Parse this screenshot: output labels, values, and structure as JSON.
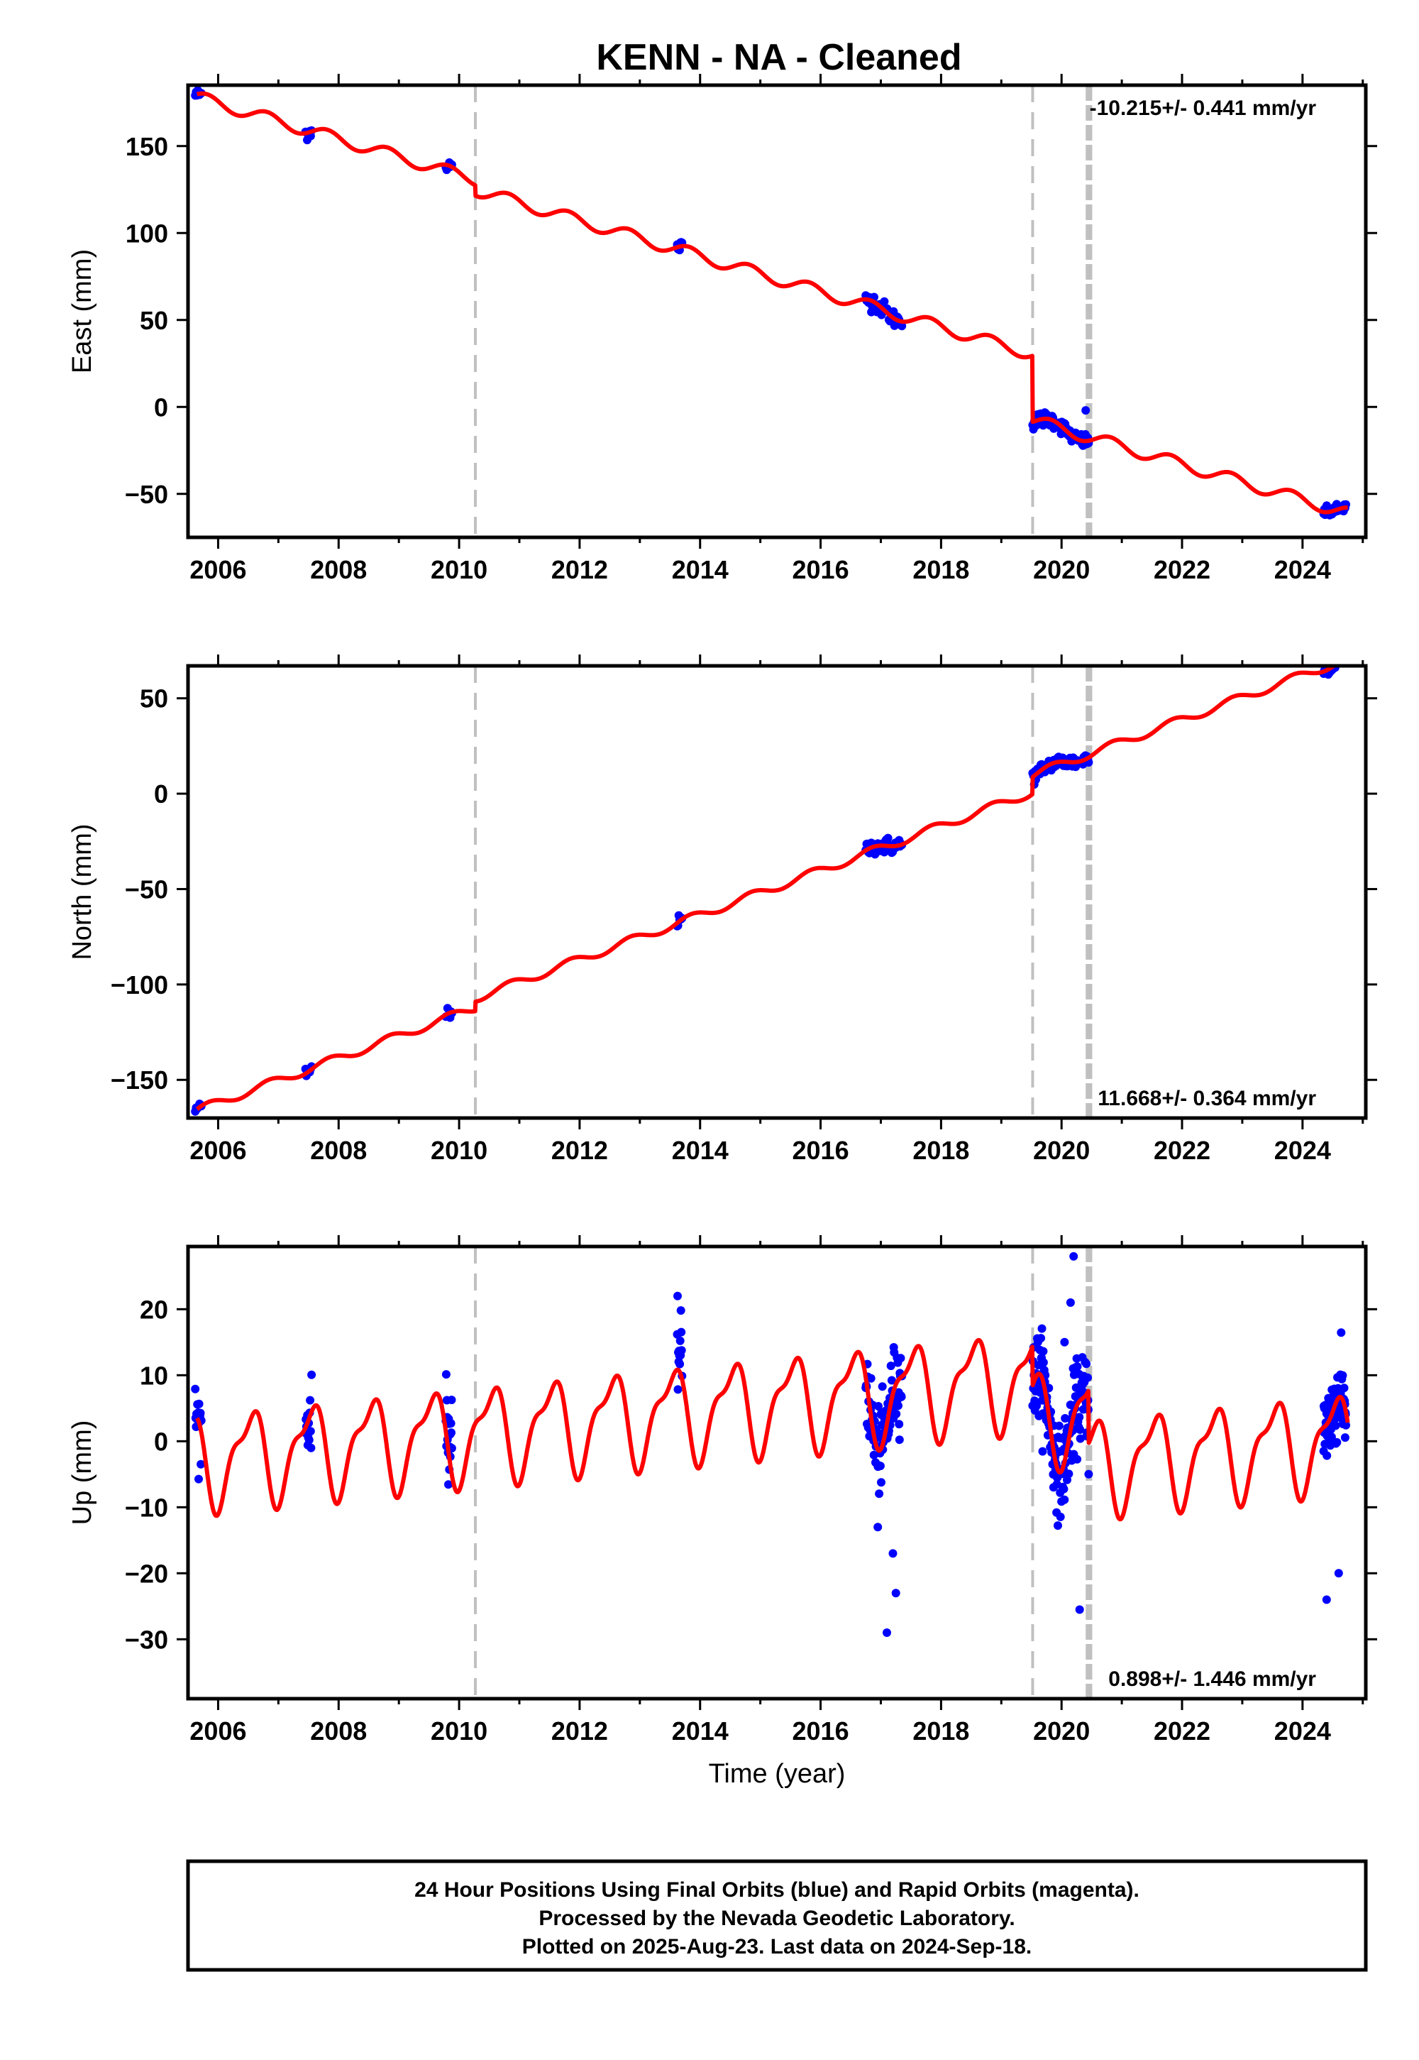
{
  "title": "KENN  - NA - Cleaned",
  "colors": {
    "final_orbits": "#0000ff",
    "model": "#ff0000",
    "offset_line": "#c0c0c0",
    "frame": "#000000"
  },
  "footer": {
    "line1": "24 Hour Positions Using Final Orbits (blue) and Rapid Orbits (magenta).",
    "line2": "Processed by the Nevada Geodetic Laboratory.",
    "line3": "Plotted on 2025-Aug-23. Last data on 2024-Sep-18."
  },
  "chart_data": [
    {
      "type": "scatter",
      "component": "east",
      "ylabel": "East (mm)",
      "xlabel": "",
      "xlim": [
        2005.5,
        2025.05
      ],
      "ylim": [
        -75,
        185
      ],
      "xticks": [
        2006,
        2008,
        2010,
        2012,
        2014,
        2016,
        2018,
        2020,
        2022,
        2024
      ],
      "xtick_labels": [
        "2006",
        "2008",
        "2010",
        "2012",
        "2014",
        "2016",
        "2018",
        "2020",
        "2022",
        "2024"
      ],
      "yticks": [
        -50,
        0,
        50,
        100,
        150
      ],
      "ytick_labels": [
        "−50",
        "0",
        "50",
        "100",
        "150"
      ],
      "rate_text": "-10.215+/- 0.441 mm/yr",
      "rate_position": "top-right",
      "offsets": [
        2010.27,
        2019.52,
        2020.43,
        2020.48
      ],
      "steps": [
        {
          "t": 2010.27,
          "d": -6.0
        },
        {
          "t": 2019.52,
          "d": -38.0
        }
      ],
      "model": {
        "t0": 2005.65,
        "y0": 178,
        "rate": -10.215,
        "ann_amp": 3.5,
        "ann_phase": 0.55
      },
      "clusters": [
        {
          "t0": 2005.62,
          "t1": 2005.72,
          "n": 8,
          "spread": 1.5,
          "off": 0
        },
        {
          "t0": 2007.45,
          "t1": 2007.55,
          "n": 8,
          "spread": 2,
          "off": 0
        },
        {
          "t0": 2009.78,
          "t1": 2009.88,
          "n": 8,
          "spread": 2,
          "off": 0
        },
        {
          "t0": 2013.62,
          "t1": 2013.7,
          "n": 7,
          "spread": 1.8,
          "off": 0
        },
        {
          "t0": 2016.75,
          "t1": 2017.35,
          "n": 40,
          "spread": 2.5,
          "off": 0
        },
        {
          "t0": 2019.52,
          "t1": 2020.45,
          "n": 70,
          "spread": 2.2,
          "off": 0
        },
        {
          "t0": 2024.35,
          "t1": 2024.72,
          "n": 30,
          "spread": 1.5,
          "off": 0
        }
      ],
      "outliers": [
        {
          "t": 2020.4,
          "y": -2
        }
      ]
    },
    {
      "type": "scatter",
      "component": "north",
      "ylabel": "North (mm)",
      "xlabel": "",
      "xlim": [
        2005.5,
        2025.05
      ],
      "ylim": [
        -170,
        67
      ],
      "xticks": [
        2006,
        2008,
        2010,
        2012,
        2014,
        2016,
        2018,
        2020,
        2022,
        2024
      ],
      "xtick_labels": [
        "2006",
        "2008",
        "2010",
        "2012",
        "2014",
        "2016",
        "2018",
        "2020",
        "2022",
        "2024"
      ],
      "yticks": [
        -150,
        -100,
        -50,
        0,
        50
      ],
      "ytick_labels": [
        "−150",
        "−100",
        "−50",
        "0",
        "50"
      ],
      "rate_text": "11.668+/- 0.364 mm/yr",
      "rate_position": "bottom-right",
      "offsets": [
        2010.27,
        2019.52,
        2020.43,
        2020.48
      ],
      "steps": [
        {
          "t": 2010.27,
          "d": 5.0
        },
        {
          "t": 2019.52,
          "d": 9.0
        }
      ],
      "model": {
        "t0": 2005.65,
        "y0": -166,
        "rate": 11.668,
        "ann_amp": 2.2,
        "ann_phase": 0.3
      },
      "clusters": [
        {
          "t0": 2005.62,
          "t1": 2005.72,
          "n": 8,
          "spread": 1.2,
          "off": 0
        },
        {
          "t0": 2007.45,
          "t1": 2007.55,
          "n": 8,
          "spread": 1.5,
          "off": 0
        },
        {
          "t0": 2009.78,
          "t1": 2009.88,
          "n": 8,
          "spread": 1.5,
          "off": 0
        },
        {
          "t0": 2013.62,
          "t1": 2013.7,
          "n": 7,
          "spread": 1.5,
          "off": 0
        },
        {
          "t0": 2016.75,
          "t1": 2017.35,
          "n": 40,
          "spread": 2.2,
          "off": 0
        },
        {
          "t0": 2019.52,
          "t1": 2020.45,
          "n": 70,
          "spread": 2.0,
          "off": 0
        },
        {
          "t0": 2024.35,
          "t1": 2024.72,
          "n": 30,
          "spread": 1.2,
          "off": 0
        }
      ],
      "outliers": []
    },
    {
      "type": "scatter",
      "component": "up",
      "ylabel": "Up (mm)",
      "xlabel": "Time (year)",
      "xlim": [
        2005.5,
        2025.05
      ],
      "ylim": [
        -39,
        29.5
      ],
      "xticks": [
        2006,
        2008,
        2010,
        2012,
        2014,
        2016,
        2018,
        2020,
        2022,
        2024
      ],
      "xtick_labels": [
        "2006",
        "2008",
        "2010",
        "2012",
        "2014",
        "2016",
        "2018",
        "2020",
        "2022",
        "2024"
      ],
      "yticks": [
        -30,
        -20,
        -10,
        0,
        10,
        20
      ],
      "ytick_labels": [
        "−30",
        "−20",
        "−10",
        "0",
        "10",
        "20"
      ],
      "rate_text": "0.898+/- 1.446 mm/yr",
      "rate_position": "bottom-right",
      "offsets": [
        2010.27,
        2019.52,
        2020.43,
        2020.48
      ],
      "steps": [
        {
          "t": 2019.52,
          "d": -6.0
        },
        {
          "t": 2020.45,
          "d": -8.0
        }
      ],
      "model": {
        "t0": 2005.65,
        "y0": -3,
        "rate": 0.898,
        "ann_amp": 6.5,
        "ann_phase": 2.4,
        "semi_amp": 2.5,
        "semi_phase": 1.0
      },
      "clusters": [
        {
          "t0": 2005.62,
          "t1": 2005.72,
          "n": 15,
          "spread": 2.5,
          "off": 0
        },
        {
          "t0": 2007.45,
          "t1": 2007.55,
          "n": 14,
          "spread": 2.5,
          "off": 0
        },
        {
          "t0": 2009.78,
          "t1": 2009.88,
          "n": 20,
          "spread": 3.5,
          "off": 3
        },
        {
          "t0": 2013.62,
          "t1": 2013.7,
          "n": 14,
          "spread": 3,
          "off": 3
        },
        {
          "t0": 2016.75,
          "t1": 2017.35,
          "n": 90,
          "spread": 3.2,
          "off": 0
        },
        {
          "t0": 2019.52,
          "t1": 2020.45,
          "n": 170,
          "spread": 3.2,
          "off": 0
        },
        {
          "t0": 2024.35,
          "t1": 2024.72,
          "n": 90,
          "spread": 3.0,
          "off": 0
        }
      ],
      "outliers": [
        {
          "t": 2017.1,
          "y": -29
        },
        {
          "t": 2017.25,
          "y": -23
        },
        {
          "t": 2017.2,
          "y": -17
        },
        {
          "t": 2016.95,
          "y": -13
        },
        {
          "t": 2020.2,
          "y": 28
        },
        {
          "t": 2020.15,
          "y": 21
        },
        {
          "t": 2020.05,
          "y": 15
        },
        {
          "t": 2020.3,
          "y": -25.5
        },
        {
          "t": 2024.4,
          "y": -24
        },
        {
          "t": 2024.6,
          "y": -20
        }
      ]
    }
  ]
}
